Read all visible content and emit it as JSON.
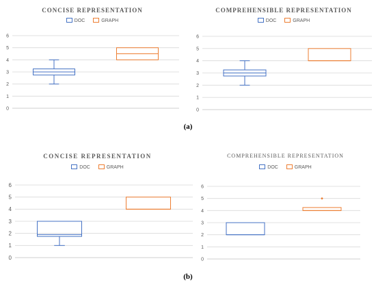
{
  "figure": {
    "caption_a": "(a)",
    "caption_b": "(b)"
  },
  "colors": {
    "DOC": "#4472c4",
    "GRAPH": "#ed7d31",
    "grid": "#d9d9d9",
    "axis": "#bfbfbf",
    "text": "#595959"
  },
  "chart_data": [
    {
      "type": "box",
      "title": "CONCISE REPRESENTATION",
      "legend": [
        "DOC",
        "GRAPH"
      ],
      "legend_position": "top-center",
      "ylim": [
        0,
        6
      ],
      "yticks": [
        0,
        1,
        2,
        3,
        4,
        5,
        6
      ],
      "grid": true,
      "series": [
        {
          "name": "DOC",
          "min": 2,
          "q1": 2.75,
          "median": 3,
          "q3": 3.25,
          "max": 4,
          "outliers": []
        },
        {
          "name": "GRAPH",
          "min": 4,
          "q1": 4,
          "median": 4.5,
          "q3": 5,
          "max": 5,
          "outliers": []
        }
      ]
    },
    {
      "type": "box",
      "title": "COMPREHENSIBLE REPRESENTATION",
      "legend": [
        "DOC",
        "GRAPH"
      ],
      "legend_position": "top-center",
      "ylim": [
        0,
        6
      ],
      "yticks": [
        0,
        1,
        2,
        3,
        4,
        5,
        6
      ],
      "grid": true,
      "series": [
        {
          "name": "DOC",
          "min": 2,
          "q1": 2.75,
          "median": 3,
          "q3": 3.25,
          "max": 4,
          "outliers": []
        },
        {
          "name": "GRAPH",
          "min": 4,
          "q1": 4,
          "median": 4,
          "q3": 5,
          "max": 5,
          "outliers": []
        }
      ]
    },
    {
      "type": "box",
      "title": "CONCISE REPRESENTATION",
      "legend": [
        "DOC",
        "GRAPH"
      ],
      "legend_position": "top-center",
      "ylim": [
        0,
        6
      ],
      "yticks": [
        0,
        1,
        2,
        3,
        4,
        5,
        6
      ],
      "grid": true,
      "series": [
        {
          "name": "DOC",
          "min": 1,
          "q1": 1.75,
          "median": 1.9,
          "q3": 3,
          "max": 3,
          "outliers": []
        },
        {
          "name": "GRAPH",
          "min": 4,
          "q1": 4,
          "median": 4,
          "q3": 5,
          "max": 5,
          "outliers": []
        }
      ]
    },
    {
      "type": "box",
      "title": "COMPREHENSIBLE REPRESENTATION",
      "legend": [
        "DOC",
        "GRAPH"
      ],
      "legend_position": "top-center",
      "ylim": [
        0,
        6
      ],
      "yticks": [
        0,
        1,
        2,
        3,
        4,
        5,
        6
      ],
      "grid": true,
      "series": [
        {
          "name": "DOC",
          "min": 2,
          "q1": 2,
          "median": 2,
          "q3": 3,
          "max": 3,
          "outliers": []
        },
        {
          "name": "GRAPH",
          "min": 4,
          "q1": 4,
          "median": 4,
          "q3": 4.25,
          "max": 4.25,
          "outliers": [
            5
          ]
        }
      ]
    }
  ]
}
